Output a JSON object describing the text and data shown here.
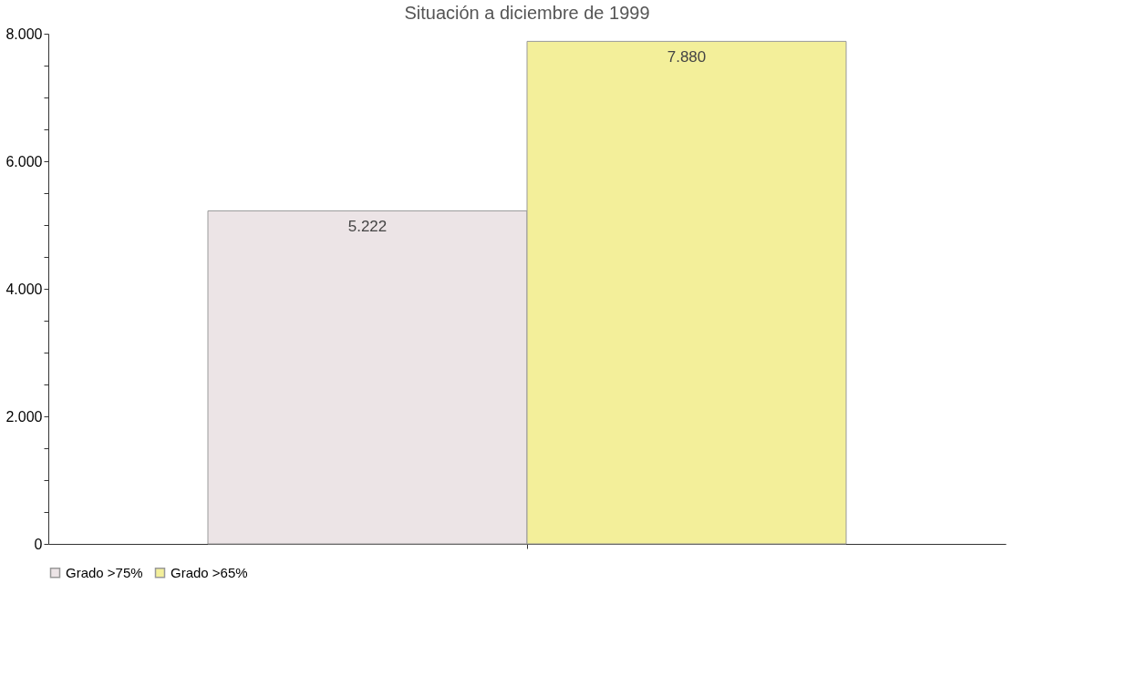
{
  "chart_data": {
    "type": "bar",
    "title": "Situación a diciembre de 1999",
    "categories": [
      null
    ],
    "series": [
      {
        "name": "Grado >75%",
        "color": "#ece4e6",
        "values": [
          5222
        ],
        "value_labels": [
          "5.222"
        ]
      },
      {
        "name": "Grado >65%",
        "color": "#f3ef9a",
        "values": [
          7880
        ],
        "value_labels": [
          "7.880"
        ]
      }
    ],
    "ylim": [
      0,
      8000
    ],
    "yticks": [
      {
        "value": 0,
        "label": "0"
      },
      {
        "value": 500,
        "label": null
      },
      {
        "value": 1000,
        "label": null
      },
      {
        "value": 1500,
        "label": null
      },
      {
        "value": 2000,
        "label": "2.000"
      },
      {
        "value": 2500,
        "label": null
      },
      {
        "value": 3000,
        "label": null
      },
      {
        "value": 3500,
        "label": null
      },
      {
        "value": 4000,
        "label": "4.000"
      },
      {
        "value": 4500,
        "label": null
      },
      {
        "value": 5000,
        "label": null
      },
      {
        "value": 5500,
        "label": null
      },
      {
        "value": 6000,
        "label": "6.000"
      },
      {
        "value": 6500,
        "label": null
      },
      {
        "value": 7000,
        "label": null
      },
      {
        "value": 7500,
        "label": null
      },
      {
        "value": 8000,
        "label": "8.000"
      }
    ],
    "grid": false,
    "legend": "bottom",
    "tick_labels": "y"
  }
}
